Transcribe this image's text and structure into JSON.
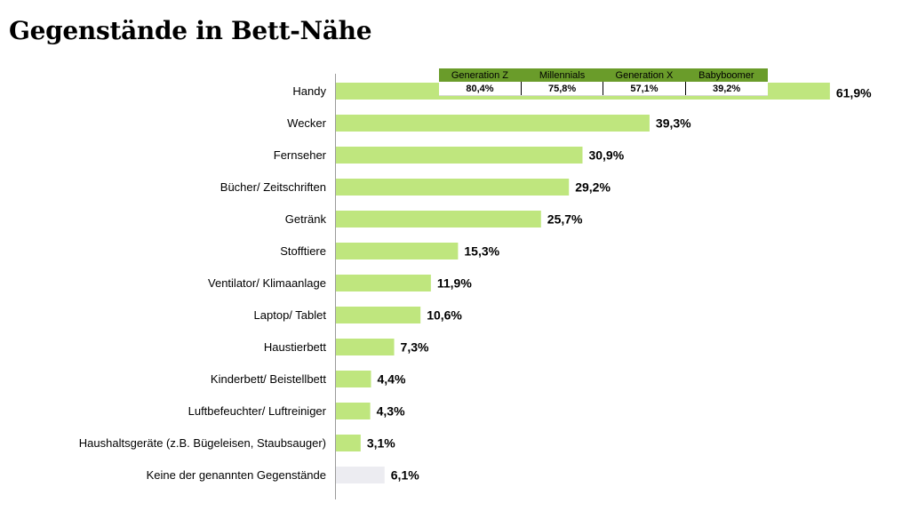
{
  "title": "Gegenstände in Bett-Nähe",
  "colors": {
    "bar": "#bfe67e",
    "bar_none": "#ececf1",
    "header": "#6a9c2a"
  },
  "generation_table": {
    "headers": [
      "Generation Z",
      "Millennials",
      "Generation X",
      "Babyboomer"
    ],
    "values": [
      "80,4%",
      "75,8%",
      "57,1%",
      "39,2%"
    ]
  },
  "chart_data": {
    "type": "bar",
    "orientation": "horizontal",
    "title": "Gegenstände in Bett-Nähe",
    "xlim": [
      0,
      100
    ],
    "grid": false,
    "categories": [
      "Handy",
      "Wecker",
      "Fernseher",
      "Bücher/ Zeitschriften",
      "Getränk",
      "Stofftiere",
      "Ventilator/ Klimaanlage",
      "Laptop/ Tablet",
      "Haustierbett",
      "Kinderbett/ Beistellbett",
      "Luftbefeuchter/ Luftreiniger",
      "Haushaltsgeräte (z.B. Bügeleisen, Staubsauger)",
      "Keine der genannten Gegenstände"
    ],
    "values": [
      61.9,
      39.3,
      30.9,
      29.2,
      25.7,
      15.3,
      11.9,
      10.6,
      7.3,
      4.4,
      4.3,
      3.1,
      6.1
    ],
    "value_labels": [
      "61,9%",
      "39,3%",
      "30,9%",
      "29,2%",
      "25,7%",
      "15,3%",
      "11,9%",
      "10,6%",
      "7,3%",
      "4,4%",
      "4,3%",
      "3,1%",
      "6,1%"
    ]
  }
}
